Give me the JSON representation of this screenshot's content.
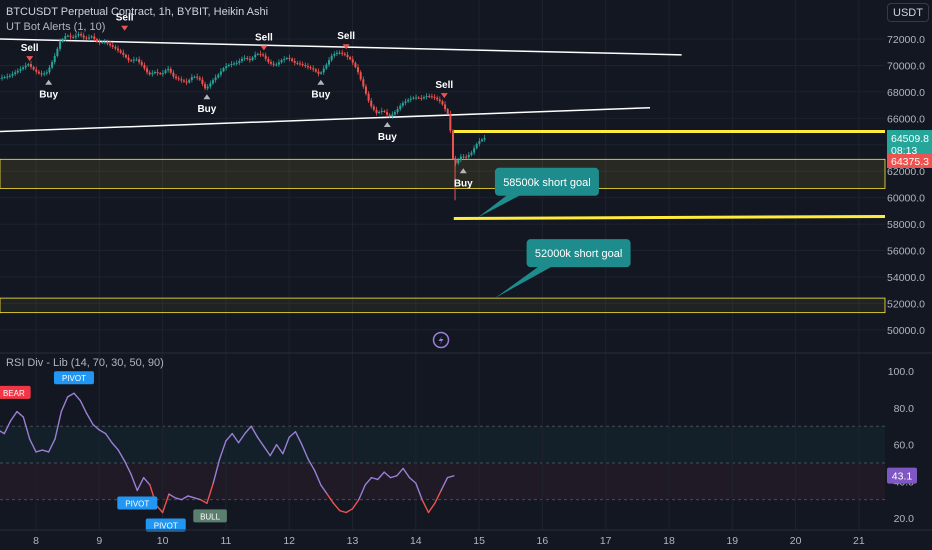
{
  "legend": {
    "title": "BTCUSDT Perpetual Contract, 1h, BYBIT, Heikin Ashi",
    "indicator": "UT Bot Alerts (1, 10)",
    "rsi_indicator": "RSI Div - Lib (14, 70, 30, 50, 90)"
  },
  "currency_button": "USDT",
  "colors": {
    "background": "#131722",
    "bull": "#26a69a",
    "bear": "#ef5350",
    "rsi_line": "#9b7fd4",
    "zone_yellow": "#ffeb3b",
    "callout": "#1e8c8c",
    "trendline": "#ffffff"
  },
  "chart_data": [
    {
      "type": "candlestick",
      "price_axis": {
        "min": 50000,
        "max": 72000,
        "ticks": [
          50000,
          52000,
          54000,
          56000,
          58000,
          60000,
          62000,
          64000,
          66000,
          68000,
          70000,
          72000
        ],
        "tick_labels": [
          "50000.0",
          "52000.0",
          "54000.0",
          "56000.0",
          "58000.0",
          "60000.0",
          "62000.0",
          "64000.0",
          "66000.0",
          "68000.0",
          "70000.0",
          "72000.0"
        ]
      },
      "time_axis": {
        "ticks": [
          8,
          9,
          10,
          11,
          12,
          13,
          14,
          15,
          16,
          17,
          18,
          19,
          20,
          21
        ],
        "tick_labels": [
          "8",
          "9",
          "10",
          "11",
          "12",
          "13",
          "14",
          "15",
          "16",
          "17",
          "18",
          "19",
          "20",
          "21"
        ]
      },
      "price_path": [
        [
          7.4,
          69000
        ],
        [
          7.6,
          69200
        ],
        [
          7.8,
          69800
        ],
        [
          7.9,
          70100
        ],
        [
          8.0,
          69600
        ],
        [
          8.1,
          69300
        ],
        [
          8.2,
          69500
        ],
        [
          8.3,
          70500
        ],
        [
          8.4,
          71800
        ],
        [
          8.5,
          72300
        ],
        [
          8.6,
          72100
        ],
        [
          8.7,
          72400
        ],
        [
          8.8,
          72000
        ],
        [
          8.9,
          72200
        ],
        [
          9.0,
          71700
        ],
        [
          9.1,
          71800
        ],
        [
          9.2,
          71500
        ],
        [
          9.3,
          71200
        ],
        [
          9.4,
          70800
        ],
        [
          9.5,
          70300
        ],
        [
          9.6,
          70500
        ],
        [
          9.7,
          70000
        ],
        [
          9.8,
          69300
        ],
        [
          9.9,
          69500
        ],
        [
          10.0,
          69300
        ],
        [
          10.1,
          69800
        ],
        [
          10.2,
          69100
        ],
        [
          10.3,
          68900
        ],
        [
          10.4,
          68700
        ],
        [
          10.5,
          69200
        ],
        [
          10.6,
          69000
        ],
        [
          10.7,
          68200
        ],
        [
          10.8,
          68800
        ],
        [
          10.9,
          69300
        ],
        [
          11.0,
          69900
        ],
        [
          11.1,
          70100
        ],
        [
          11.2,
          70200
        ],
        [
          11.3,
          70600
        ],
        [
          11.4,
          70400
        ],
        [
          11.5,
          70900
        ],
        [
          11.6,
          70800
        ],
        [
          11.7,
          70200
        ],
        [
          11.8,
          70000
        ],
        [
          11.9,
          70400
        ],
        [
          12.0,
          70600
        ],
        [
          12.1,
          70200
        ],
        [
          12.2,
          70100
        ],
        [
          12.3,
          69900
        ],
        [
          12.4,
          69700
        ],
        [
          12.5,
          69300
        ],
        [
          12.6,
          70000
        ],
        [
          12.7,
          70800
        ],
        [
          12.8,
          71000
        ],
        [
          12.9,
          70800
        ],
        [
          13.0,
          70400
        ],
        [
          13.1,
          69600
        ],
        [
          13.2,
          68300
        ],
        [
          13.3,
          67000
        ],
        [
          13.4,
          66400
        ],
        [
          13.5,
          66600
        ],
        [
          13.6,
          66100
        ],
        [
          13.7,
          66500
        ],
        [
          13.8,
          67100
        ],
        [
          13.9,
          67400
        ],
        [
          14.0,
          67600
        ],
        [
          14.1,
          67500
        ],
        [
          14.2,
          67700
        ],
        [
          14.3,
          67600
        ],
        [
          14.4,
          67300
        ],
        [
          14.45,
          67000
        ],
        [
          14.55,
          66100
        ],
        [
          14.6,
          63000
        ],
        [
          14.65,
          62600
        ],
        [
          14.7,
          62900
        ],
        [
          14.75,
          63200
        ],
        [
          14.8,
          63000
        ],
        [
          14.9,
          63400
        ],
        [
          15.0,
          64200
        ],
        [
          15.1,
          64500
        ]
      ],
      "last_price": "64509.8",
      "countdown": "08:13",
      "previous_price": "64375.3",
      "support_zone": [
        60700,
        62900
      ],
      "lower_zone": [
        51300,
        52400
      ],
      "resistance_level": 65000,
      "target_level": 58500,
      "trendlines": [
        {
          "from": [
            7.4,
            72000
          ],
          "to": [
            18.2,
            70800
          ]
        },
        {
          "from": [
            7.4,
            65000
          ],
          "to": [
            17.7,
            66800
          ]
        }
      ],
      "annotations": [
        {
          "text": "58500k short goal",
          "x": 15.25,
          "price": 61200
        },
        {
          "text": "52000k short goal",
          "x": 15.75,
          "price": 55800
        }
      ],
      "signals": [
        {
          "type": "sell",
          "text": "Sell",
          "x": 7.9,
          "price": 70100
        },
        {
          "type": "buy",
          "text": "Buy",
          "x": 8.2,
          "price": 69300
        },
        {
          "type": "sell",
          "text": "Sell",
          "x": 9.4,
          "price": 72400
        },
        {
          "type": "buy",
          "text": "Buy",
          "x": 10.7,
          "price": 68200
        },
        {
          "type": "sell",
          "text": "Sell",
          "x": 11.6,
          "price": 70900
        },
        {
          "type": "buy",
          "text": "Buy",
          "x": 12.5,
          "price": 69300
        },
        {
          "type": "sell",
          "text": "Sell",
          "x": 12.9,
          "price": 71000
        },
        {
          "type": "buy",
          "text": "Buy",
          "x": 13.55,
          "price": 66100
        },
        {
          "type": "sell",
          "text": "Sell",
          "x": 14.45,
          "price": 67300
        },
        {
          "type": "buy",
          "text": "Buy",
          "x": 14.75,
          "price": 62600
        }
      ]
    },
    {
      "type": "line",
      "name": "RSI",
      "y_axis": {
        "min": 20,
        "max": 100,
        "ticks": [
          20,
          40,
          60,
          80,
          100
        ],
        "tick_labels": [
          "20.0",
          "40.0",
          "60.0",
          "80.0",
          "100.0"
        ]
      },
      "levels": [
        70,
        30,
        50
      ],
      "last_value": "43.1",
      "values": [
        [
          7.4,
          68
        ],
        [
          7.5,
          66
        ],
        [
          7.6,
          73
        ],
        [
          7.7,
          78
        ],
        [
          7.8,
          75
        ],
        [
          7.9,
          63
        ],
        [
          8.0,
          56
        ],
        [
          8.1,
          57
        ],
        [
          8.2,
          56
        ],
        [
          8.3,
          63
        ],
        [
          8.4,
          78
        ],
        [
          8.5,
          86
        ],
        [
          8.6,
          88
        ],
        [
          8.7,
          84
        ],
        [
          8.8,
          77
        ],
        [
          8.9,
          71
        ],
        [
          9.0,
          68
        ],
        [
          9.1,
          66
        ],
        [
          9.2,
          61
        ],
        [
          9.3,
          57
        ],
        [
          9.4,
          51
        ],
        [
          9.5,
          44
        ],
        [
          9.6,
          35
        ],
        [
          9.7,
          42
        ],
        [
          9.8,
          38
        ],
        [
          9.9,
          27
        ],
        [
          10.0,
          23
        ],
        [
          10.1,
          33
        ],
        [
          10.2,
          31
        ],
        [
          10.3,
          30
        ],
        [
          10.4,
          32
        ],
        [
          10.5,
          31
        ],
        [
          10.6,
          30
        ],
        [
          10.7,
          28
        ],
        [
          10.8,
          39
        ],
        [
          10.9,
          52
        ],
        [
          11.0,
          62
        ],
        [
          11.1,
          66
        ],
        [
          11.2,
          61
        ],
        [
          11.3,
          66
        ],
        [
          11.4,
          70
        ],
        [
          11.5,
          64
        ],
        [
          11.6,
          59
        ],
        [
          11.7,
          54
        ],
        [
          11.8,
          60
        ],
        [
          11.9,
          55
        ],
        [
          12.0,
          64
        ],
        [
          12.1,
          67
        ],
        [
          12.2,
          60
        ],
        [
          12.3,
          52
        ],
        [
          12.4,
          46
        ],
        [
          12.5,
          38
        ],
        [
          12.6,
          33
        ],
        [
          12.7,
          28
        ],
        [
          12.8,
          24
        ],
        [
          12.9,
          23
        ],
        [
          13.0,
          25
        ],
        [
          13.1,
          30
        ],
        [
          13.2,
          38
        ],
        [
          13.3,
          42
        ],
        [
          13.4,
          41
        ],
        [
          13.5,
          45
        ],
        [
          13.6,
          42
        ],
        [
          13.7,
          43
        ],
        [
          13.8,
          47
        ],
        [
          13.9,
          42
        ],
        [
          14.0,
          39
        ],
        [
          14.1,
          30
        ],
        [
          14.2,
          23
        ],
        [
          14.3,
          28
        ],
        [
          14.4,
          35
        ],
        [
          14.5,
          42
        ],
        [
          14.6,
          43
        ]
      ],
      "labels": [
        {
          "text": "BEAR",
          "kind": "bear",
          "x": 7.65,
          "value": 80
        },
        {
          "text": "PIVOT",
          "kind": "pivot",
          "x": 8.6,
          "value": 88
        },
        {
          "text": "PIVOT",
          "kind": "pivot",
          "x": 9.6,
          "value": 35
        },
        {
          "text": "PIVOT",
          "kind": "pivot",
          "x": 10.05,
          "value": 23
        },
        {
          "text": "BULL",
          "kind": "bull",
          "x": 10.75,
          "value": 28
        }
      ]
    }
  ]
}
